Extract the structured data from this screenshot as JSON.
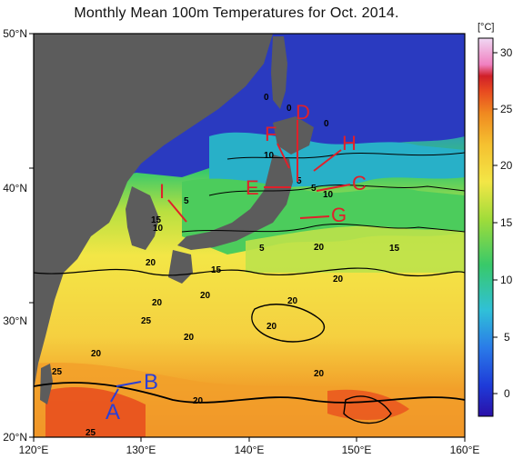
{
  "title": "Monthly Mean 100m Temperatures for Oct. 2014.",
  "colorbar": {
    "unit": "[°C]",
    "ticks": [
      "30",
      "25",
      "20",
      "15",
      "10",
      "5",
      "0"
    ]
  },
  "axes": {
    "x_ticks": [
      "120°E",
      "130°E",
      "140°E",
      "150°E",
      "160°E"
    ],
    "y_ticks": [
      "50°N",
      "40°N",
      "30°N",
      "20°N"
    ]
  },
  "contour_labels": [
    "0",
    "0",
    "0",
    "5",
    "5",
    "10",
    "5",
    "10",
    "15",
    "10",
    "5",
    "20",
    "15",
    "15",
    "20",
    "20",
    "20",
    "20",
    "25",
    "20",
    "20",
    "20",
    "20",
    "25",
    "20",
    "20",
    "25"
  ],
  "markers": {
    "red": [
      "D",
      "F",
      "H",
      "E",
      "C",
      "I",
      "G"
    ],
    "blue": [
      "B",
      "A"
    ]
  },
  "colors": {
    "land": "#5c5c5c",
    "cold": "#1a2fc0",
    "cool": "#2aa8d0",
    "mid": "#38c96a",
    "warm": "#f3e646",
    "hot": "#f0a020",
    "hotter": "#e84a20",
    "marker_red": "#e0202a",
    "marker_blue": "#2a3fd6"
  }
}
